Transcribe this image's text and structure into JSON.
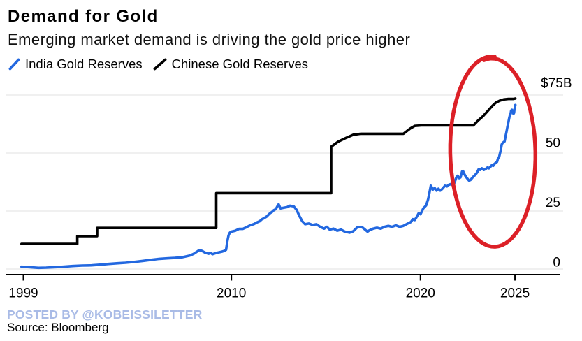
{
  "header": {
    "title": "Demand for Gold",
    "subtitle": "Emerging market demand is driving the gold price higher"
  },
  "legend": {
    "items": [
      {
        "label": "India Gold Reserves",
        "color": "#2368e0",
        "icon": "blue-slash"
      },
      {
        "label": "Chinese Gold Reserves",
        "color": "#000000",
        "icon": "black-slash"
      }
    ]
  },
  "footer": {
    "posted_by": "POSTED BY @KOBEISSILETTER",
    "source": "Source: Bloomberg"
  },
  "colors": {
    "india_line": "#2368e0",
    "china_line": "#000000",
    "annotation_red": "#dc2027",
    "gridline": "#ebebeb",
    "axis": "#000000",
    "posted_by_text": "#a9bbe6",
    "background": "#ffffff"
  },
  "chart_data": {
    "type": "line",
    "title": "Demand for Gold",
    "subtitle": "Emerging market demand is driving the gold price higher",
    "ylabel_unit": "$B",
    "xlim": [
      1998.9,
      2025.1
    ],
    "ylim": [
      0,
      75
    ],
    "grid": "horizontal",
    "legend_position": "top-left",
    "x_ticks": [
      {
        "label": "1999",
        "year": 1999
      },
      {
        "label": "2010",
        "year": 2010
      },
      {
        "label": "2020",
        "year": 2020
      },
      {
        "label": "2025",
        "year": 2025
      }
    ],
    "y_ticks": [
      {
        "label": "0",
        "value": 0
      },
      {
        "label": "25",
        "value": 25
      },
      {
        "label": "50",
        "value": 50
      },
      {
        "label": "$75B",
        "value": 75
      }
    ],
    "series": [
      {
        "name": "India Gold Reserves",
        "color": "#2368e0",
        "points": [
          [
            1998.9,
            1.0
          ],
          [
            1999.3,
            0.8
          ],
          [
            1999.8,
            0.5
          ],
          [
            2000.2,
            0.6
          ],
          [
            2000.7,
            0.8
          ],
          [
            2001.1,
            1.0
          ],
          [
            2001.6,
            1.3
          ],
          [
            2002.1,
            1.5
          ],
          [
            2002.6,
            1.6
          ],
          [
            2003.1,
            1.9
          ],
          [
            2003.5,
            2.2
          ],
          [
            2004.0,
            2.5
          ],
          [
            2004.4,
            2.7
          ],
          [
            2004.8,
            3.0
          ],
          [
            2005.3,
            3.5
          ],
          [
            2005.8,
            4.0
          ],
          [
            2006.2,
            4.4
          ],
          [
            2006.6,
            4.6
          ],
          [
            2007.0,
            4.8
          ],
          [
            2007.4,
            5.1
          ],
          [
            2007.8,
            5.8
          ],
          [
            2008.0,
            6.5
          ],
          [
            2008.2,
            7.6
          ],
          [
            2008.3,
            8.2
          ],
          [
            2008.45,
            7.8
          ],
          [
            2008.6,
            7.1
          ],
          [
            2008.8,
            6.6
          ],
          [
            2008.9,
            7.0
          ],
          [
            2009.0,
            6.4
          ],
          [
            2009.15,
            6.8
          ],
          [
            2009.3,
            7.1
          ],
          [
            2009.5,
            7.5
          ],
          [
            2009.65,
            7.9
          ],
          [
            2009.72,
            8.3
          ],
          [
            2009.78,
            11.7
          ],
          [
            2009.85,
            14.5
          ],
          [
            2009.92,
            15.7
          ],
          [
            2010.0,
            16.1
          ],
          [
            2010.2,
            16.5
          ],
          [
            2010.4,
            17.3
          ],
          [
            2010.6,
            17.3
          ],
          [
            2010.8,
            18.0
          ],
          [
            2011.0,
            18.9
          ],
          [
            2011.2,
            19.4
          ],
          [
            2011.35,
            20.1
          ],
          [
            2011.5,
            20.6
          ],
          [
            2011.6,
            21.4
          ],
          [
            2011.7,
            21.8
          ],
          [
            2011.85,
            22.5
          ],
          [
            2011.95,
            23.3
          ],
          [
            2012.05,
            24.1
          ],
          [
            2012.15,
            24.6
          ],
          [
            2012.25,
            25.4
          ],
          [
            2012.35,
            25.8
          ],
          [
            2012.45,
            27.3
          ],
          [
            2012.5,
            27.9
          ],
          [
            2012.6,
            26.1
          ],
          [
            2012.75,
            26.4
          ],
          [
            2012.95,
            26.7
          ],
          [
            2013.1,
            27.3
          ],
          [
            2013.3,
            27.0
          ],
          [
            2013.45,
            25.5
          ],
          [
            2013.6,
            22.8
          ],
          [
            2013.75,
            20.6
          ],
          [
            2013.9,
            19.3
          ],
          [
            2014.1,
            19.6
          ],
          [
            2014.3,
            19.0
          ],
          [
            2014.5,
            19.3
          ],
          [
            2014.7,
            18.2
          ],
          [
            2014.9,
            17.4
          ],
          [
            2015.05,
            18.2
          ],
          [
            2015.2,
            17.0
          ],
          [
            2015.4,
            17.4
          ],
          [
            2015.6,
            16.5
          ],
          [
            2015.8,
            17.0
          ],
          [
            2016.0,
            16.1
          ],
          [
            2016.25,
            15.7
          ],
          [
            2016.45,
            16.3
          ],
          [
            2016.65,
            17.9
          ],
          [
            2016.85,
            18.2
          ],
          [
            2016.95,
            17.8
          ],
          [
            2017.2,
            16.1
          ],
          [
            2017.3,
            16.7
          ],
          [
            2017.5,
            17.4
          ],
          [
            2017.7,
            17.8
          ],
          [
            2017.9,
            17.4
          ],
          [
            2018.1,
            18.2
          ],
          [
            2018.3,
            18.6
          ],
          [
            2018.5,
            18.2
          ],
          [
            2018.7,
            18.8
          ],
          [
            2018.9,
            18.2
          ],
          [
            2019.1,
            18.6
          ],
          [
            2019.3,
            19.5
          ],
          [
            2019.5,
            20.3
          ],
          [
            2019.6,
            21.5
          ],
          [
            2019.7,
            21.1
          ],
          [
            2019.8,
            22.4
          ],
          [
            2019.9,
            24.0
          ],
          [
            2020.0,
            23.6
          ],
          [
            2020.15,
            26.1
          ],
          [
            2020.3,
            27.4
          ],
          [
            2020.4,
            29.9
          ],
          [
            2020.45,
            31.7
          ],
          [
            2020.55,
            35.9
          ],
          [
            2020.6,
            35.2
          ],
          [
            2020.65,
            34.2
          ],
          [
            2020.75,
            34.9
          ],
          [
            2020.85,
            33.8
          ],
          [
            2020.95,
            34.6
          ],
          [
            2021.05,
            33.8
          ],
          [
            2021.15,
            34.5
          ],
          [
            2021.3,
            35.9
          ],
          [
            2021.4,
            35.6
          ],
          [
            2021.5,
            36.3
          ],
          [
            2021.6,
            36.6
          ],
          [
            2021.7,
            36.2
          ],
          [
            2021.8,
            37.2
          ],
          [
            2021.9,
            39.5
          ],
          [
            2021.97,
            40.2
          ],
          [
            2022.05,
            39.2
          ],
          [
            2022.12,
            39.5
          ],
          [
            2022.2,
            42.0
          ],
          [
            2022.25,
            42.3
          ],
          [
            2022.32,
            41.0
          ],
          [
            2022.4,
            39.8
          ],
          [
            2022.5,
            38.8
          ],
          [
            2022.57,
            38.1
          ],
          [
            2022.65,
            38.4
          ],
          [
            2022.75,
            39.4
          ],
          [
            2022.9,
            40.6
          ],
          [
            2023.0,
            41.6
          ],
          [
            2023.08,
            43.0
          ],
          [
            2023.15,
            42.7
          ],
          [
            2023.25,
            43.4
          ],
          [
            2023.35,
            42.7
          ],
          [
            2023.45,
            43.1
          ],
          [
            2023.55,
            43.8
          ],
          [
            2023.62,
            43.4
          ],
          [
            2023.7,
            44.1
          ],
          [
            2023.78,
            44.8
          ],
          [
            2023.85,
            44.5
          ],
          [
            2023.9,
            45.2
          ],
          [
            2024.0,
            45.9
          ],
          [
            2024.05,
            46.2
          ],
          [
            2024.1,
            47.6
          ],
          [
            2024.15,
            47.9
          ],
          [
            2024.2,
            49.6
          ],
          [
            2024.25,
            51.3
          ],
          [
            2024.3,
            53.7
          ],
          [
            2024.35,
            54.4
          ],
          [
            2024.4,
            54.7
          ],
          [
            2024.45,
            55.0
          ],
          [
            2024.5,
            57.1
          ],
          [
            2024.55,
            59.1
          ],
          [
            2024.6,
            61.2
          ],
          [
            2024.65,
            63.2
          ],
          [
            2024.7,
            65.2
          ],
          [
            2024.73,
            66.3
          ],
          [
            2024.76,
            66.6
          ],
          [
            2024.8,
            68.3
          ],
          [
            2024.84,
            68.6
          ],
          [
            2024.88,
            67.6
          ],
          [
            2024.92,
            66.9
          ],
          [
            2024.95,
            67.3
          ],
          [
            2024.97,
            68.6
          ],
          [
            2025.0,
            70.0
          ],
          [
            2025.02,
            70.7
          ]
        ]
      },
      {
        "name": "Chinese Gold Reserves",
        "color": "#000000",
        "points": [
          [
            1998.9,
            10.8
          ],
          [
            2001.85,
            10.8
          ],
          [
            2001.85,
            14.2
          ],
          [
            2002.9,
            14.2
          ],
          [
            2002.9,
            17.7
          ],
          [
            2009.2,
            17.7
          ],
          [
            2009.2,
            32.7
          ],
          [
            2015.28,
            32.7
          ],
          [
            2015.28,
            52.7
          ],
          [
            2015.65,
            54.9
          ],
          [
            2016.0,
            56.3
          ],
          [
            2016.45,
            57.9
          ],
          [
            2016.85,
            58.3
          ],
          [
            2019.1,
            58.3
          ],
          [
            2019.45,
            60.5
          ],
          [
            2019.7,
            61.7
          ],
          [
            2020.05,
            61.9
          ],
          [
            2022.8,
            61.9
          ],
          [
            2023.05,
            64.0
          ],
          [
            2023.3,
            65.8
          ],
          [
            2023.55,
            68.0
          ],
          [
            2023.8,
            70.3
          ],
          [
            2024.0,
            71.8
          ],
          [
            2024.2,
            72.6
          ],
          [
            2024.4,
            73.1
          ],
          [
            2024.65,
            73.3
          ],
          [
            2024.9,
            73.3
          ],
          [
            2025.02,
            73.5
          ]
        ]
      }
    ],
    "annotation": {
      "shape": "hand-drawn-ellipse",
      "color": "#dc2027",
      "center_year": 2023.84,
      "center_value": 50.4,
      "radius_years": 2.24,
      "radius_value": 41.1,
      "tilt_deg": -1.2,
      "meaning": "highlights the 2022-2025 surge in gold reserves"
    }
  }
}
